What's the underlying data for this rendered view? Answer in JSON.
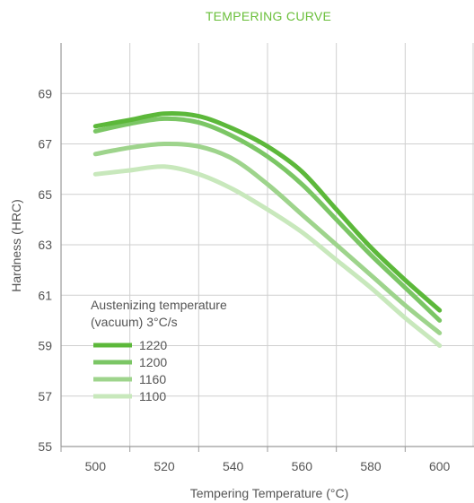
{
  "chart_data": {
    "type": "line",
    "title": "TEMPERING CURVE",
    "xlabel": "Tempering Temperature (°C)",
    "ylabel": "Hardness (HRC)",
    "xlim": [
      490,
      610
    ],
    "ylim": [
      55,
      71
    ],
    "x_ticks": [
      500,
      520,
      540,
      560,
      580,
      600
    ],
    "y_ticks": [
      55,
      57,
      59,
      61,
      63,
      65,
      67,
      69
    ],
    "grid": true,
    "legend": {
      "position": "left-middle",
      "title_line1": "Austenizing temperature",
      "title_line2": "(vacuum) 3°C/s"
    },
    "series": [
      {
        "name": "1220",
        "color": "#5cb83a",
        "x": [
          500,
          510,
          520,
          530,
          540,
          550,
          560,
          570,
          580,
          590,
          600
        ],
        "y": [
          67.7,
          67.95,
          68.2,
          68.1,
          67.6,
          66.9,
          65.9,
          64.4,
          62.9,
          61.6,
          60.4
        ]
      },
      {
        "name": "1200",
        "color": "#7bc665",
        "x": [
          500,
          510,
          520,
          530,
          540,
          550,
          560,
          570,
          580,
          590,
          600
        ],
        "y": [
          67.5,
          67.8,
          68.0,
          67.85,
          67.3,
          66.5,
          65.4,
          64.0,
          62.6,
          61.3,
          60.0
        ]
      },
      {
        "name": "1160",
        "color": "#9ed48c",
        "x": [
          500,
          510,
          520,
          530,
          540,
          550,
          560,
          570,
          580,
          590,
          600
        ],
        "y": [
          66.6,
          66.85,
          67.0,
          66.9,
          66.4,
          65.4,
          64.2,
          63.0,
          61.8,
          60.6,
          59.5
        ]
      },
      {
        "name": "1100",
        "color": "#c8e8bc",
        "x": [
          500,
          510,
          520,
          530,
          540,
          550,
          560,
          570,
          580,
          590,
          600
        ],
        "y": [
          65.8,
          65.95,
          66.1,
          65.8,
          65.2,
          64.4,
          63.5,
          62.4,
          61.3,
          60.1,
          59.0
        ]
      }
    ]
  }
}
